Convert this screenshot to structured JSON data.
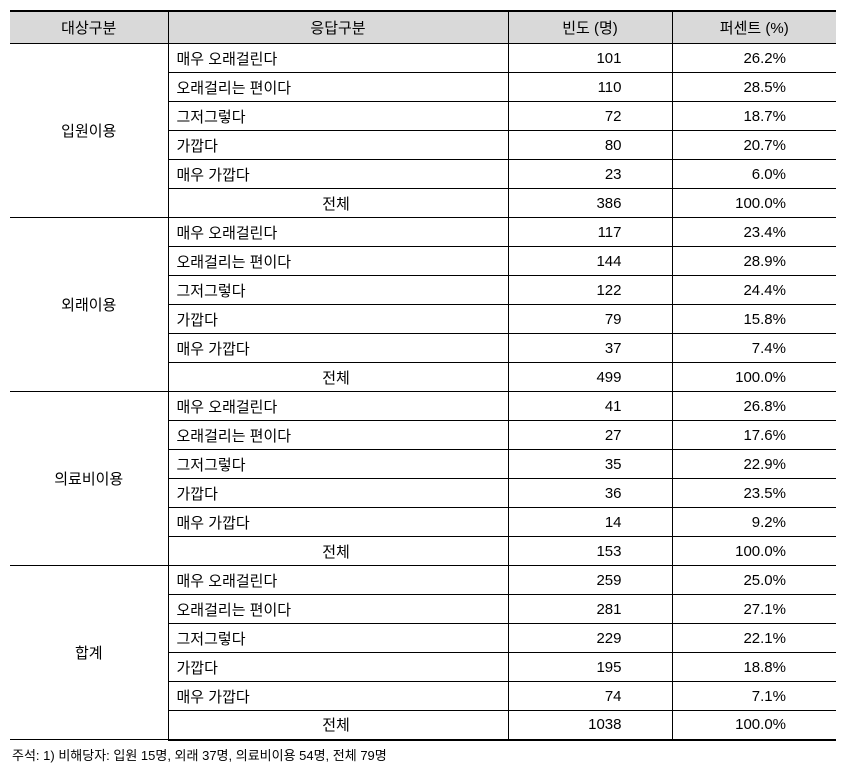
{
  "headers": {
    "category": "대상구분",
    "response": "응답구분",
    "frequency": "빈도 (명)",
    "percent": "퍼센트 (%)"
  },
  "groups": [
    {
      "name": "입원이용",
      "rows": [
        {
          "label": "매우 오래걸린다",
          "freq": "101",
          "pct": "26.2%"
        },
        {
          "label": "오래걸리는 편이다",
          "freq": "110",
          "pct": "28.5%"
        },
        {
          "label": "그저그렇다",
          "freq": "72",
          "pct": "18.7%"
        },
        {
          "label": "가깝다",
          "freq": "80",
          "pct": "20.7%"
        },
        {
          "label": "매우 가깝다",
          "freq": "23",
          "pct": "6.0%"
        }
      ],
      "total": {
        "label": "전체",
        "freq": "386",
        "pct": "100.0%"
      }
    },
    {
      "name": "외래이용",
      "rows": [
        {
          "label": "매우 오래걸린다",
          "freq": "117",
          "pct": "23.4%"
        },
        {
          "label": "오래걸리는 편이다",
          "freq": "144",
          "pct": "28.9%"
        },
        {
          "label": "그저그렇다",
          "freq": "122",
          "pct": "24.4%"
        },
        {
          "label": "가깝다",
          "freq": "79",
          "pct": "15.8%"
        },
        {
          "label": "매우 가깝다",
          "freq": "37",
          "pct": "7.4%"
        }
      ],
      "total": {
        "label": "전체",
        "freq": "499",
        "pct": "100.0%"
      }
    },
    {
      "name": "의료비이용",
      "rows": [
        {
          "label": "매우 오래걸린다",
          "freq": "41",
          "pct": "26.8%"
        },
        {
          "label": "오래걸리는 편이다",
          "freq": "27",
          "pct": "17.6%"
        },
        {
          "label": "그저그렇다",
          "freq": "35",
          "pct": "22.9%"
        },
        {
          "label": "가깝다",
          "freq": "36",
          "pct": "23.5%"
        },
        {
          "label": "매우 가깝다",
          "freq": "14",
          "pct": "9.2%"
        }
      ],
      "total": {
        "label": "전체",
        "freq": "153",
        "pct": "100.0%"
      }
    },
    {
      "name": "합계",
      "rows": [
        {
          "label": "매우 오래걸린다",
          "freq": "259",
          "pct": "25.0%"
        },
        {
          "label": "오래걸리는 편이다",
          "freq": "281",
          "pct": "27.1%"
        },
        {
          "label": "그저그렇다",
          "freq": "229",
          "pct": "22.1%"
        },
        {
          "label": "가깝다",
          "freq": "195",
          "pct": "18.8%"
        },
        {
          "label": "매우 가깝다",
          "freq": "74",
          "pct": "7.1%"
        }
      ],
      "total": {
        "label": "전체",
        "freq": "1038",
        "pct": "100.0%"
      }
    }
  ],
  "footnote": "주석: 1) 비해당자: 입원 15명, 외래 37명, 의료비이용 54명, 전체 79명"
}
